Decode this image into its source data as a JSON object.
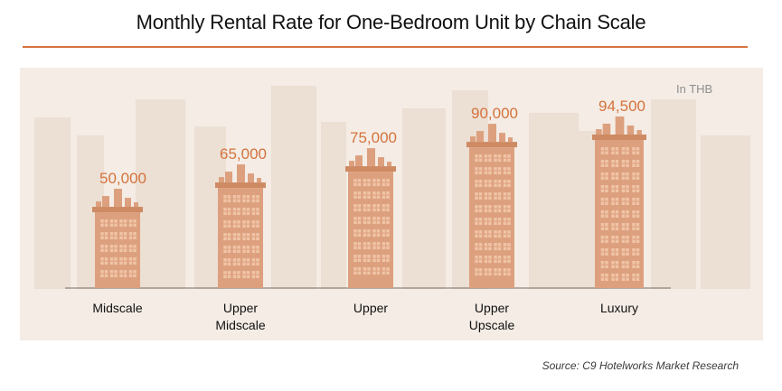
{
  "title": "Monthly Rental Rate for One-Bedroom Unit by Chain Scale",
  "unit_note": "In THB",
  "source": "Source: C9 Hotelworks Market Research",
  "colors": {
    "accent": "#d4733d",
    "building": "#dda07e",
    "building_dark": "#cd8a63",
    "window": "#f0c4a6",
    "value_label": "#d4733d",
    "panel": "#f4ece5",
    "skyline": "#ecdfd4"
  },
  "chart_data": {
    "type": "bar",
    "title": "Monthly Rental Rate for One-Bedroom Unit by Chain Scale",
    "categories": [
      "Midscale",
      "Upper\nMidscale",
      "Upper",
      "Upper\nUpscale",
      "Luxury"
    ],
    "values": [
      50000,
      65000,
      75000,
      90000,
      94500
    ],
    "value_labels": [
      "50,000",
      "65,000",
      "75,000",
      "90,000",
      "94,500"
    ],
    "ylabel": "",
    "xlabel": "",
    "legend": "none",
    "grid": false
  }
}
